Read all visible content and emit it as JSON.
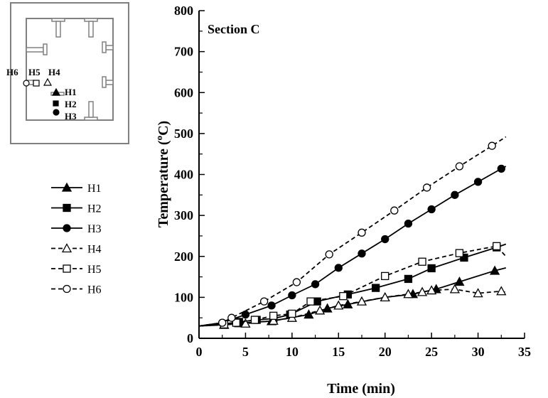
{
  "chart_data": {
    "type": "line",
    "title": "",
    "annotation": "Section C",
    "xlabel": "Time (min)",
    "ylabel_prefix": "Temperature (",
    "ylabel_sup": "o",
    "ylabel_suffix": "C)",
    "xlim": [
      0,
      35
    ],
    "ylim": [
      0,
      800
    ],
    "xticks": [
      "0",
      "5",
      "10",
      "15",
      "20",
      "25",
      "30",
      "35"
    ],
    "yticks": [
      "0",
      "100",
      "200",
      "300",
      "400",
      "500",
      "600",
      "700",
      "800"
    ],
    "legend_position": "left",
    "series": [
      {
        "name": "H1",
        "marker": "filled-triangle",
        "dash": "solid",
        "color": "#000000",
        "x": [
          0,
          2.7,
          4.3,
          7.8,
          11.8,
          13.8,
          16,
          20,
          23,
          25.5,
          28,
          31.8,
          33
        ],
        "y": [
          30,
          33,
          37,
          42,
          58,
          73,
          83,
          100,
          108,
          120,
          138,
          165,
          172
        ]
      },
      {
        "name": "H2",
        "marker": "filled-square",
        "dash": "solid",
        "color": "#000000",
        "x": [
          0,
          2.7,
          4.3,
          6.2,
          8,
          9.8,
          12.7,
          16,
          19,
          22.5,
          25,
          28.5,
          32,
          33
        ],
        "y": [
          30,
          35,
          40,
          45,
          48,
          58,
          90,
          107,
          123,
          145,
          171,
          197,
          222,
          230
        ]
      },
      {
        "name": "H3",
        "marker": "filled-circle",
        "dash": "solid",
        "color": "#000000",
        "x": [
          0,
          2.5,
          5,
          7.8,
          10,
          12.5,
          15,
          17.5,
          20,
          22.5,
          25,
          27.5,
          30,
          32.5,
          33
        ],
        "y": [
          30,
          38,
          58,
          80,
          105,
          132,
          172,
          207,
          242,
          280,
          315,
          350,
          382,
          414,
          420
        ]
      },
      {
        "name": "H4",
        "marker": "open-triangle",
        "dash": "dashed",
        "color": "#000000",
        "x": [
          0,
          2.7,
          5,
          8,
          10,
          13,
          15,
          17.5,
          20,
          22.5,
          24,
          25,
          27.5,
          30,
          32.5,
          33
        ],
        "y": [
          30,
          33,
          36,
          43,
          50,
          68,
          80,
          90,
          100,
          108,
          113,
          117,
          120,
          110,
          115,
          112
        ]
      },
      {
        "name": "H5",
        "marker": "open-square",
        "dash": "dashed",
        "color": "#000000",
        "x": [
          0,
          2.7,
          4,
          6,
          8,
          10,
          12,
          15.5,
          20,
          24,
          28,
          32,
          33
        ],
        "y": [
          30,
          34,
          38,
          45,
          55,
          60,
          90,
          103,
          152,
          187,
          208,
          225,
          200
        ]
      },
      {
        "name": "H6",
        "marker": "open-circle",
        "dash": "dashed",
        "color": "#000000",
        "x": [
          0,
          2.5,
          3.5,
          7,
          10.5,
          14,
          17.5,
          21,
          24.5,
          28,
          31.5,
          33
        ],
        "y": [
          30,
          38,
          50,
          90,
          137,
          205,
          258,
          312,
          368,
          420,
          470,
          492
        ]
      }
    ]
  },
  "inset": {
    "sensor_labels": [
      "H6",
      "H5",
      "H4",
      "H1",
      "H2",
      "H3"
    ]
  }
}
